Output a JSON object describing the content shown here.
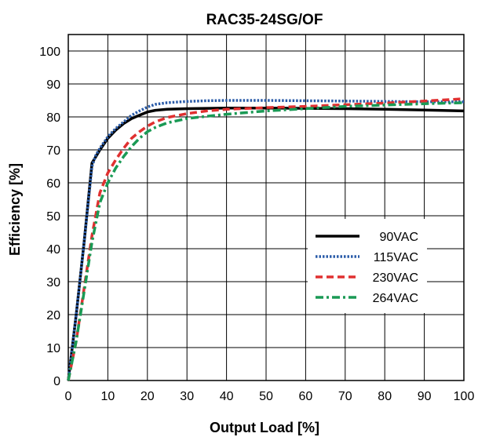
{
  "chart_data": {
    "type": "line",
    "title": "RAC35-24SG/OF",
    "xlabel": "Output Load [%]",
    "ylabel": "Efficiency [%]",
    "xlim": [
      0,
      100
    ],
    "ylim": [
      0,
      105
    ],
    "xticks": [
      0,
      10,
      20,
      30,
      40,
      50,
      60,
      70,
      80,
      90,
      100
    ],
    "yticks": [
      0,
      10,
      20,
      30,
      40,
      50,
      60,
      70,
      80,
      90,
      100
    ],
    "grid": true,
    "legend_position": "right-center",
    "series": [
      {
        "name": "90VAC",
        "color": "#000000",
        "style": "solid",
        "x": [
          0,
          2,
          4,
          6,
          7,
          8,
          10,
          12,
          14,
          16,
          18,
          20,
          22,
          25,
          30,
          35,
          40,
          50,
          60,
          70,
          80,
          90,
          100
        ],
        "y": [
          0,
          20,
          42,
          66,
          68,
          70,
          73.5,
          76,
          78,
          79.5,
          80.5,
          81.5,
          82,
          82.3,
          82.5,
          82.6,
          82.7,
          82.7,
          82.6,
          82.5,
          82.3,
          82.1,
          81.8
        ]
      },
      {
        "name": "115VAC",
        "color": "#2a5ba8",
        "style": "dotted",
        "x": [
          0,
          2,
          4,
          6,
          7,
          8,
          10,
          12,
          14,
          16,
          18,
          20,
          22,
          25,
          30,
          35,
          40,
          50,
          60,
          70,
          80,
          90,
          100
        ],
        "y": [
          0,
          20,
          42,
          65,
          68.5,
          70.5,
          74,
          76.5,
          78.5,
          80.5,
          81.8,
          83,
          83.8,
          84.3,
          84.7,
          84.9,
          85,
          85,
          84.9,
          84.8,
          84.7,
          84.6,
          84.6
        ]
      },
      {
        "name": "230VAC",
        "color": "#e03030",
        "style": "dashed",
        "x": [
          0,
          2,
          4,
          6,
          8,
          10,
          12,
          14,
          16,
          18,
          20,
          22,
          25,
          30,
          35,
          40,
          50,
          60,
          70,
          80,
          90,
          100
        ],
        "y": [
          0,
          12,
          28,
          44,
          57,
          63,
          67,
          70.5,
          73.5,
          75.5,
          77.2,
          78.5,
          79.8,
          81,
          81.8,
          82.3,
          82.8,
          83.2,
          83.7,
          84.2,
          84.8,
          85.5
        ]
      },
      {
        "name": "264VAC",
        "color": "#1a9a55",
        "style": "dashdot",
        "x": [
          0,
          2,
          4,
          6,
          8,
          10,
          12,
          14,
          16,
          18,
          20,
          22,
          25,
          30,
          35,
          40,
          50,
          60,
          70,
          80,
          90,
          100
        ],
        "y": [
          0,
          12,
          27,
          42,
          54,
          60,
          64.5,
          68,
          71,
          73.5,
          75.5,
          76.8,
          78.2,
          79.5,
          80.2,
          80.8,
          81.8,
          82.5,
          83.2,
          83.6,
          84,
          84.3
        ]
      }
    ]
  }
}
